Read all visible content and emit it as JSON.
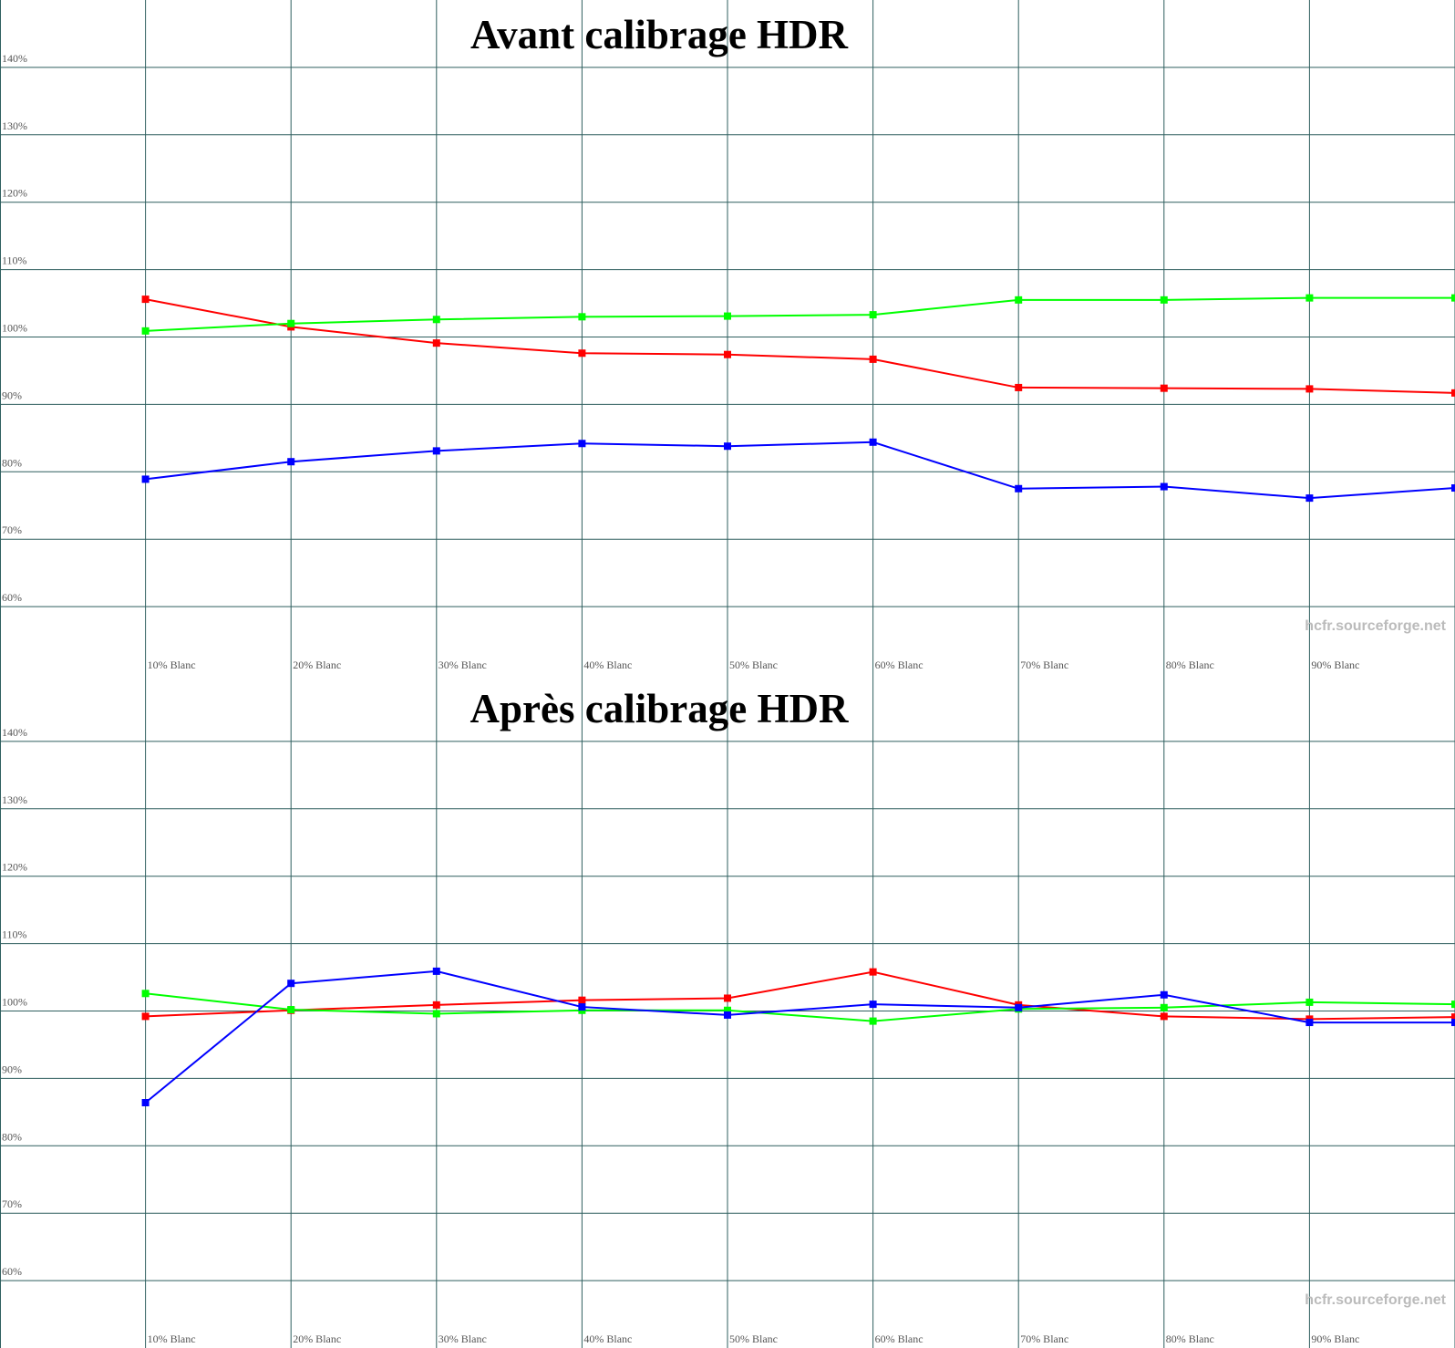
{
  "chart_data": [
    {
      "type": "line",
      "title": "Avant calibrage HDR",
      "watermark": "hcfr.sourceforge.net",
      "categories": [
        "10% Blanc",
        "20% Blanc",
        "30% Blanc",
        "40% Blanc",
        "50% Blanc",
        "60% Blanc",
        "70% Blanc",
        "80% Blanc",
        "90% Blanc",
        null
      ],
      "series": [
        {
          "name": "Rouge",
          "color": "#ff0000",
          "values": [
            105.6,
            101.5,
            99.1,
            97.6,
            97.4,
            96.7,
            92.5,
            92.4,
            92.3,
            91.7
          ]
        },
        {
          "name": "Vert",
          "color": "#00ff00",
          "values": [
            100.9,
            102.0,
            102.6,
            103.0,
            103.1,
            103.3,
            105.5,
            105.5,
            105.8,
            105.8
          ]
        },
        {
          "name": "Bleu",
          "color": "#0000ff",
          "values": [
            78.9,
            81.5,
            83.1,
            84.2,
            83.8,
            84.4,
            77.5,
            77.8,
            76.1,
            77.6
          ]
        }
      ],
      "ylim": [
        50,
        150
      ],
      "yticks": [
        {
          "value": 60,
          "label": "60%"
        },
        {
          "value": 70,
          "label": "70%"
        },
        {
          "value": 80,
          "label": "80%"
        },
        {
          "value": 90,
          "label": "90%"
        },
        {
          "value": 100,
          "label": "100%"
        },
        {
          "value": 110,
          "label": "110%"
        },
        {
          "value": 120,
          "label": "120%"
        },
        {
          "value": 130,
          "label": "130%"
        },
        {
          "value": 140,
          "label": "140%"
        }
      ],
      "grid": true,
      "reference_line": 100
    },
    {
      "type": "line",
      "title": "Après calibrage HDR",
      "watermark": "hcfr.sourceforge.net",
      "categories": [
        "10% Blanc",
        "20% Blanc",
        "30% Blanc",
        "40% Blanc",
        "50% Blanc",
        "60% Blanc",
        "70% Blanc",
        "80% Blanc",
        "90% Blanc",
        null
      ],
      "series": [
        {
          "name": "Rouge",
          "color": "#ff0000",
          "values": [
            99.2,
            100.1,
            100.9,
            101.6,
            101.9,
            105.8,
            100.9,
            99.2,
            98.8,
            99.1
          ]
        },
        {
          "name": "Vert",
          "color": "#00ff00",
          "values": [
            102.6,
            100.2,
            99.6,
            100.1,
            100.1,
            98.5,
            100.3,
            100.5,
            101.3,
            101.0
          ]
        },
        {
          "name": "Bleu",
          "color": "#0000ff",
          "values": [
            86.4,
            104.1,
            105.9,
            100.6,
            99.4,
            101.0,
            100.5,
            102.4,
            98.3,
            98.3
          ]
        }
      ],
      "ylim": [
        50,
        150
      ],
      "yticks": [
        {
          "value": 60,
          "label": "60%"
        },
        {
          "value": 70,
          "label": "70%"
        },
        {
          "value": 80,
          "label": "80%"
        },
        {
          "value": 90,
          "label": "90%"
        },
        {
          "value": 100,
          "label": "100%"
        },
        {
          "value": 110,
          "label": "110%"
        },
        {
          "value": 120,
          "label": "120%"
        },
        {
          "value": 130,
          "label": "130%"
        },
        {
          "value": 140,
          "label": "140%"
        }
      ],
      "grid": true,
      "reference_line": 100
    }
  ]
}
